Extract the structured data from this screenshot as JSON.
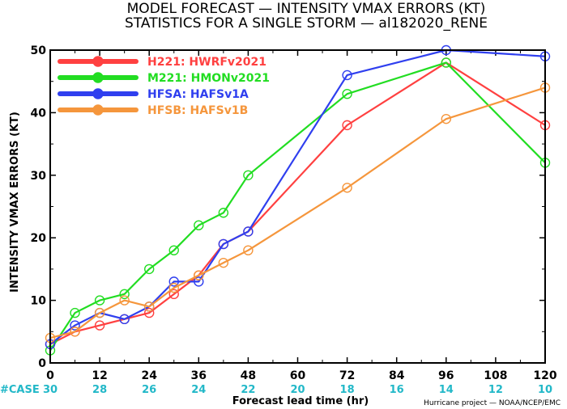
{
  "chart_data": {
    "type": "line",
    "title_line1": "MODEL FORECAST — INTENSITY VMAX ERRORS (KT)",
    "title_line2": "STATISTICS FOR A SINGLE STORM — al182020_RENE",
    "xlabel": "Forecast lead time (hr)",
    "ylabel": "INTENSITY VMAX ERRORS (KT)",
    "xlim": [
      0,
      120
    ],
    "ylim": [
      0,
      50
    ],
    "xticks": [
      0,
      12,
      24,
      36,
      48,
      60,
      72,
      84,
      96,
      108,
      120
    ],
    "yticks": [
      0,
      10,
      20,
      30,
      40,
      50
    ],
    "grid": false,
    "legend_position": "top-left",
    "case_label": "#CASE",
    "cases": [
      30,
      28,
      26,
      24,
      22,
      20,
      18,
      16,
      14,
      12,
      10
    ],
    "credit": "Hurricane project — NOAA/NCEP/EMC",
    "series": [
      {
        "name": "H221:  HWRFv2021",
        "color": "#ff4040",
        "x": [
          0,
          6,
          12,
          18,
          24,
          30,
          36,
          42,
          48,
          72,
          96,
          120
        ],
        "y": [
          3,
          5,
          6,
          7,
          8,
          11,
          14,
          19,
          21,
          38,
          48,
          38
        ]
      },
      {
        "name": "M221:  HMONv2021",
        "color": "#22dd22",
        "x": [
          0,
          6,
          12,
          18,
          24,
          30,
          36,
          42,
          48,
          72,
          96,
          120
        ],
        "y": [
          2,
          8,
          10,
          11,
          15,
          18,
          22,
          24,
          30,
          43,
          48,
          32
        ]
      },
      {
        "name": "HFSA:  HAFSv1A",
        "color": "#2f3fef",
        "x": [
          0,
          6,
          12,
          18,
          24,
          30,
          36,
          42,
          48,
          72,
          96,
          120
        ],
        "y": [
          3,
          6,
          8,
          7,
          9,
          13,
          13,
          19,
          21,
          46,
          50,
          49
        ]
      },
      {
        "name": "HFSB:  HAFSv1B",
        "color": "#f5963c",
        "x": [
          0,
          6,
          12,
          18,
          24,
          30,
          36,
          42,
          48,
          72,
          96,
          120
        ],
        "y": [
          4,
          5,
          8,
          10,
          9,
          12,
          14,
          16,
          18,
          28,
          39,
          44
        ]
      }
    ],
    "case_color": "#22b8c8",
    "case_label_color": "#22b8c8"
  }
}
